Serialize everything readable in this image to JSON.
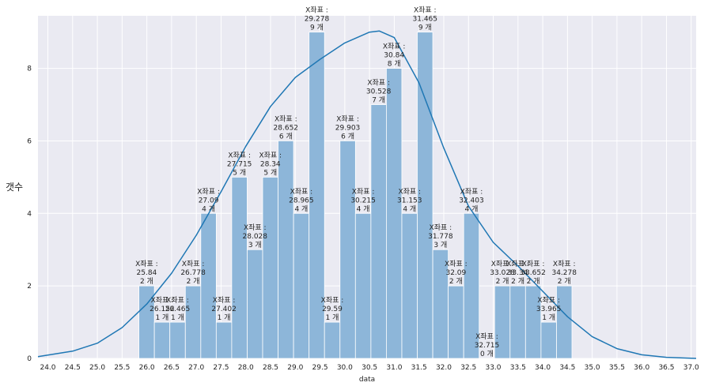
{
  "chart_data": {
    "type": "bar",
    "xlabel": "data",
    "ylabel": "갯수",
    "xlim": [
      23.8,
      37.1
    ],
    "ylim": [
      0,
      9.45
    ],
    "x_ticks": [
      "24.0",
      "24.5",
      "25.0",
      "25.5",
      "26.0",
      "26.5",
      "27.0",
      "27.5",
      "28.0",
      "28.5",
      "29.0",
      "29.5",
      "30.0",
      "30.5",
      "31.0",
      "31.5",
      "32.0",
      "32.5",
      "33.0",
      "33.5",
      "34.0",
      "34.5",
      "35.0",
      "35.5",
      "36.0",
      "36.5",
      "37.0"
    ],
    "y_ticks": [
      "0",
      "2",
      "4",
      "6",
      "8"
    ],
    "grid": true,
    "bin_width": 0.3125,
    "bar_color": "#8db6d9",
    "curve_color": "#1f77b4",
    "background": "#eaeaf2",
    "label_prefix": "X좌표 :",
    "count_suffix": "개",
    "bins": [
      {
        "x": 25.84,
        "label": "25.84",
        "count": 2
      },
      {
        "x": 26.152,
        "label": "26.152",
        "count": 1
      },
      {
        "x": 26.465,
        "label": "26.465",
        "count": 1
      },
      {
        "x": 26.778,
        "label": "26.778",
        "count": 2
      },
      {
        "x": 27.09,
        "label": "27.09",
        "count": 4
      },
      {
        "x": 27.402,
        "label": "27.402",
        "count": 1
      },
      {
        "x": 27.715,
        "label": "27.715",
        "count": 5
      },
      {
        "x": 28.028,
        "label": "28.028",
        "count": 3
      },
      {
        "x": 28.34,
        "label": "28.34",
        "count": 5
      },
      {
        "x": 28.652,
        "label": "28.652",
        "count": 6
      },
      {
        "x": 28.965,
        "label": "28.965",
        "count": 4
      },
      {
        "x": 29.278,
        "label": "29.278",
        "count": 9
      },
      {
        "x": 29.59,
        "label": "29.59",
        "count": 1
      },
      {
        "x": 29.903,
        "label": "29.903",
        "count": 6
      },
      {
        "x": 30.215,
        "label": "30.215",
        "count": 4
      },
      {
        "x": 30.528,
        "label": "30.528",
        "count": 7
      },
      {
        "x": 30.84,
        "label": "30.84",
        "count": 8
      },
      {
        "x": 31.153,
        "label": "31.153",
        "count": 4
      },
      {
        "x": 31.465,
        "label": "31.465",
        "count": 9
      },
      {
        "x": 31.778,
        "label": "31.778",
        "count": 3
      },
      {
        "x": 32.09,
        "label": "32.09",
        "count": 2
      },
      {
        "x": 32.403,
        "label": "32.403",
        "count": 4
      },
      {
        "x": 32.715,
        "label": "32.715",
        "count": 0
      },
      {
        "x": 33.028,
        "label": "33.028",
        "count": 2
      },
      {
        "x": 33.34,
        "label": "33.34",
        "count": 2
      },
      {
        "x": 33.652,
        "label": "33.652",
        "count": 2
      },
      {
        "x": 33.965,
        "label": "33.965",
        "count": 1
      },
      {
        "x": 34.278,
        "label": "34.278",
        "count": 2
      }
    ],
    "kde_curve": {
      "x": [
        23.8,
        24.5,
        25.0,
        25.5,
        26.0,
        26.5,
        27.0,
        27.5,
        28.0,
        28.5,
        29.0,
        29.5,
        30.0,
        30.5,
        30.7,
        31.0,
        31.5,
        32.0,
        32.5,
        33.0,
        33.5,
        34.0,
        34.5,
        35.0,
        35.5,
        36.0,
        36.5,
        37.1
      ],
      "y": [
        0.05,
        0.2,
        0.42,
        0.85,
        1.5,
        2.35,
        3.4,
        4.6,
        5.85,
        6.95,
        7.75,
        8.25,
        8.7,
        9.0,
        9.03,
        8.85,
        7.6,
        5.8,
        4.2,
        3.2,
        2.55,
        1.85,
        1.15,
        0.6,
        0.27,
        0.1,
        0.03,
        0.0
      ]
    }
  }
}
